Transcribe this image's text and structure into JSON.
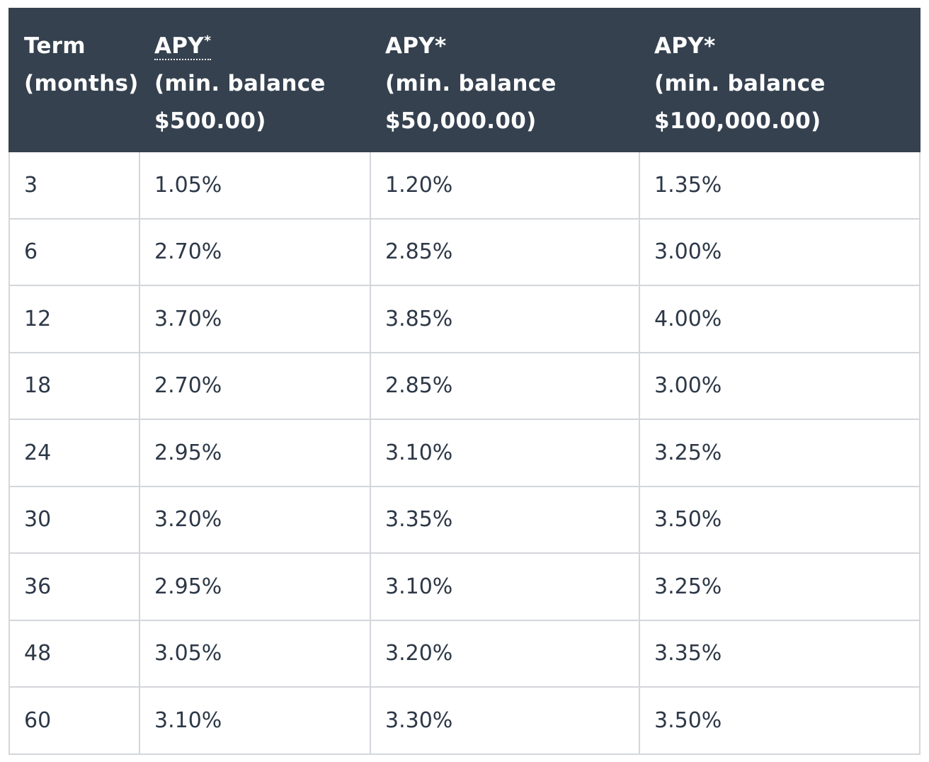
{
  "table": {
    "headers": [
      {
        "lines": [
          "Term",
          "(months)"
        ]
      },
      {
        "term": "APY",
        "sup": "*",
        "lines": [
          "(min. balance",
          "$500.00)"
        ]
      },
      {
        "lines": [
          "APY*",
          "(min. balance",
          "$50,000.00)"
        ]
      },
      {
        "lines": [
          "APY*",
          "(min. balance",
          "$100,000.00)"
        ]
      }
    ],
    "rows": [
      [
        "3",
        "1.05%",
        "1.20%",
        "1.35%"
      ],
      [
        "6",
        "2.70%",
        "2.85%",
        "3.00%"
      ],
      [
        "12",
        "3.70%",
        "3.85%",
        "4.00%"
      ],
      [
        "18",
        "2.70%",
        "2.85%",
        "3.00%"
      ],
      [
        "24",
        "2.95%",
        "3.10%",
        "3.25%"
      ],
      [
        "30",
        "3.20%",
        "3.35%",
        "3.50%"
      ],
      [
        "36",
        "2.95%",
        "3.10%",
        "3.25%"
      ],
      [
        "48",
        "3.05%",
        "3.20%",
        "3.35%"
      ],
      [
        "60",
        "3.10%",
        "3.30%",
        "3.50%"
      ]
    ]
  },
  "colors": {
    "header_bg": "#35414f",
    "header_text": "#ffffff",
    "body_text": "#2d3847",
    "grid": "#d3d6da"
  }
}
